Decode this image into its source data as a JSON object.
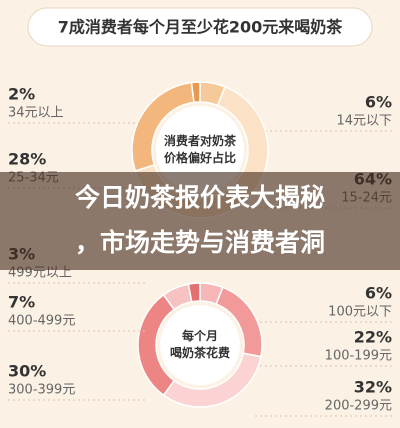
{
  "header": {
    "title": "7成消费者每个月至少花200元来喝奶茶"
  },
  "banner": {
    "lines": [
      "今日奶茶报价表大揭秘",
      "，市场走势与消费者洞"
    ]
  },
  "chart_data": [
    {
      "type": "pie",
      "title": [
        "消费者对奶茶",
        "价格偏好占比"
      ],
      "categories": [
        "14元以下",
        "15-24元",
        "25-34元",
        "34元以上"
      ],
      "values": [
        6,
        64,
        28,
        2
      ],
      "value_labels": [
        "6%",
        "64%",
        "28%",
        "2%"
      ],
      "colors": [
        "#f6c99a",
        "#fbe2c6",
        "#f3b77d",
        "#e99a52"
      ]
    },
    {
      "type": "pie",
      "title": [
        "每个月",
        "喝奶茶花费"
      ],
      "categories": [
        "100元以下",
        "100-199元",
        "200-299元",
        "300-399元",
        "400-499元",
        "499元以上"
      ],
      "values": [
        6,
        22,
        32,
        30,
        7,
        3
      ],
      "value_labels": [
        "6%",
        "22%",
        "32%",
        "30%",
        "7%",
        "3%"
      ],
      "colors": [
        "#f7b7b7",
        "#f29a9a",
        "#fbd3d3",
        "#ee8585",
        "#f6c2c2",
        "#e46f6f"
      ]
    }
  ]
}
